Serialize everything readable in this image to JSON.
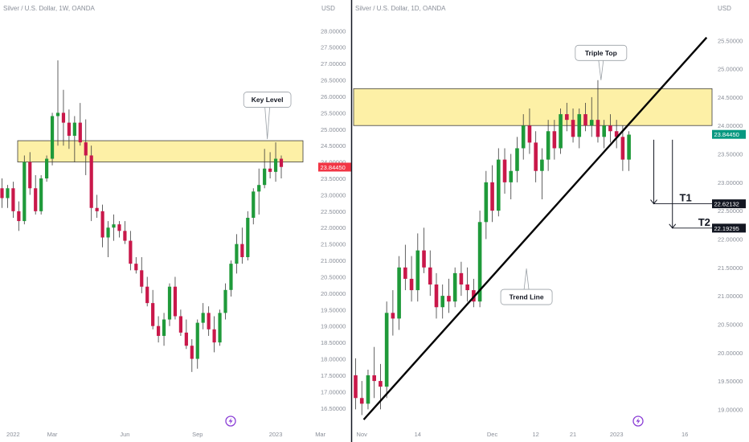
{
  "colors": {
    "up": "#1f9a3a",
    "down": "#c9184a",
    "zone": "#fdf0a6",
    "zone_line": "#3c3c3c",
    "trend": "#000000"
  },
  "chart_data": [
    {
      "type": "candlestick",
      "title": "Silver / U.S. Dollar, 1W, OANDA",
      "currency_label": "USD",
      "y_ticks": [
        "28.00000",
        "27.50000",
        "27.00000",
        "26.50000",
        "26.00000",
        "25.50000",
        "25.00000",
        "24.50000",
        "24.00000",
        "23.50000",
        "23.00000",
        "22.50000",
        "22.00000",
        "21.50000",
        "21.00000",
        "20.50000",
        "20.00000",
        "19.50000",
        "19.00000",
        "18.50000",
        "18.00000",
        "17.50000",
        "17.00000",
        "16.50000"
      ],
      "ylim": [
        16.2,
        28.4
      ],
      "x_ticks": [
        {
          "label": "2022",
          "index": 2
        },
        {
          "label": "Mar",
          "index": 9
        },
        {
          "label": "Jun",
          "index": 22
        },
        {
          "label": "Sep",
          "index": 35
        },
        {
          "label": "2023",
          "index": 49
        },
        {
          "label": "Mar",
          "index": 57
        }
      ],
      "zone": {
        "low": 24.0,
        "high": 24.65
      },
      "last_price": "23.84450",
      "last_price_value": 23.8445,
      "last_price_color": "#f23645",
      "annotation": {
        "text": "Key Level",
        "anchor_index": 47.5,
        "anchor_value": 24.7,
        "label_value": 25.9
      },
      "ohlc": [
        [
          23.2,
          23.5,
          22.6,
          22.9
        ],
        [
          22.9,
          23.3,
          22.6,
          23.2
        ],
        [
          23.2,
          23.4,
          22.3,
          22.5
        ],
        [
          22.5,
          22.8,
          21.9,
          22.2
        ],
        [
          22.2,
          24.2,
          22.1,
          24.0
        ],
        [
          24.0,
          24.3,
          23.0,
          23.2
        ],
        [
          23.2,
          23.6,
          22.4,
          22.5
        ],
        [
          22.5,
          23.6,
          22.4,
          23.5
        ],
        [
          23.5,
          24.2,
          23.4,
          24.1
        ],
        [
          24.1,
          25.5,
          23.9,
          25.4
        ],
        [
          25.4,
          27.1,
          24.5,
          25.5
        ],
        [
          25.5,
          26.2,
          24.5,
          25.2
        ],
        [
          25.2,
          25.6,
          24.4,
          24.8
        ],
        [
          24.8,
          25.4,
          24.0,
          25.2
        ],
        [
          25.2,
          25.8,
          24.5,
          24.6
        ],
        [
          24.6,
          25.3,
          23.6,
          24.2
        ],
        [
          24.2,
          24.5,
          22.2,
          22.6
        ],
        [
          22.6,
          23.0,
          22.3,
          22.5
        ],
        [
          22.5,
          22.7,
          21.4,
          21.7
        ],
        [
          21.7,
          22.2,
          21.1,
          22.0
        ],
        [
          22.0,
          22.4,
          21.6,
          22.1
        ],
        [
          22.1,
          22.2,
          21.7,
          21.9
        ],
        [
          21.9,
          22.2,
          21.5,
          21.6
        ],
        [
          21.6,
          21.9,
          20.7,
          20.9
        ],
        [
          20.9,
          21.1,
          20.6,
          20.7
        ],
        [
          20.7,
          21.1,
          20.0,
          20.2
        ],
        [
          20.2,
          20.5,
          19.6,
          19.7
        ],
        [
          19.7,
          20.1,
          18.9,
          19.0
        ],
        [
          19.0,
          19.3,
          18.5,
          18.7
        ],
        [
          18.7,
          19.4,
          18.4,
          19.2
        ],
        [
          19.2,
          20.3,
          19.0,
          20.2
        ],
        [
          20.2,
          20.5,
          19.2,
          19.3
        ],
        [
          19.3,
          19.5,
          18.7,
          18.8
        ],
        [
          18.8,
          19.2,
          18.3,
          18.4
        ],
        [
          18.4,
          18.6,
          17.6,
          18.0
        ],
        [
          18.0,
          19.2,
          17.7,
          19.1
        ],
        [
          19.1,
          19.7,
          18.9,
          19.4
        ],
        [
          19.4,
          19.6,
          18.7,
          18.9
        ],
        [
          18.9,
          19.3,
          18.2,
          18.5
        ],
        [
          18.5,
          19.5,
          18.4,
          19.4
        ],
        [
          19.4,
          20.3,
          19.2,
          20.1
        ],
        [
          20.1,
          21.0,
          19.9,
          20.9
        ],
        [
          20.9,
          21.8,
          20.6,
          21.5
        ],
        [
          21.5,
          22.0,
          20.9,
          21.1
        ],
        [
          21.1,
          22.5,
          21.0,
          22.3
        ],
        [
          22.3,
          23.2,
          22.1,
          23.1
        ],
        [
          23.1,
          23.8,
          22.4,
          23.3
        ],
        [
          23.3,
          24.4,
          23.2,
          23.8
        ],
        [
          23.8,
          24.3,
          23.5,
          23.7
        ],
        [
          23.7,
          24.6,
          23.4,
          24.1
        ],
        [
          24.1,
          24.2,
          23.5,
          23.85
        ]
      ]
    },
    {
      "type": "candlestick",
      "title": "Silver / U.S. Dollar, 1D, OANDA",
      "currency_label": "USD",
      "y_ticks": [
        "25.50000",
        "25.00000",
        "24.50000",
        "24.00000",
        "23.50000",
        "23.00000",
        "22.50000",
        "22.00000",
        "21.50000",
        "21.00000",
        "20.50000",
        "20.00000",
        "19.50000",
        "19.00000"
      ],
      "ylim": [
        18.85,
        25.9
      ],
      "x_ticks": [
        {
          "label": "Nov",
          "index": 1
        },
        {
          "label": "14",
          "index": 10
        },
        {
          "label": "Dec",
          "index": 22
        },
        {
          "label": "12",
          "index": 29
        },
        {
          "label": "21",
          "index": 35
        },
        {
          "label": "2023",
          "index": 42
        },
        {
          "label": "16",
          "index": 53
        }
      ],
      "zone": {
        "low": 24.0,
        "high": 24.65
      },
      "last_price": "23.84450",
      "last_price_value": 23.8445,
      "last_price_color": "#089981",
      "targets": [
        {
          "name": "T1",
          "label": "22.62132",
          "value": 22.62132,
          "arrow_index": 48,
          "arrow_from": 23.75
        },
        {
          "name": "T2",
          "label": "22.19295",
          "value": 22.19295,
          "arrow_index": 51,
          "arrow_from": 23.75
        }
      ],
      "trend_line": {
        "from_index": 1.3,
        "from_value": 18.82,
        "to_index": 56.5,
        "to_value": 25.55
      },
      "annotations": [
        {
          "text": "Triple Top",
          "anchor_index": 39.5,
          "anchor_value": 24.8,
          "label_value": 25.28
        },
        {
          "text": "Trend Line",
          "anchor_index": 27.5,
          "anchor_value": 21.48,
          "label_value": 20.98
        }
      ],
      "ohlc": [
        [
          19.6,
          19.9,
          19.0,
          19.2
        ],
        [
          19.2,
          19.5,
          18.9,
          19.1
        ],
        [
          19.1,
          19.7,
          19.0,
          19.6
        ],
        [
          19.6,
          20.1,
          19.2,
          19.5
        ],
        [
          19.5,
          19.8,
          19.0,
          19.4
        ],
        [
          19.4,
          20.9,
          19.2,
          20.7
        ],
        [
          20.7,
          21.1,
          20.3,
          20.6
        ],
        [
          20.6,
          21.7,
          20.4,
          21.5
        ],
        [
          21.5,
          21.9,
          21.1,
          21.3
        ],
        [
          21.3,
          21.7,
          20.9,
          21.1
        ],
        [
          21.1,
          22.1,
          20.9,
          21.8
        ],
        [
          21.8,
          22.2,
          21.4,
          21.5
        ],
        [
          21.5,
          21.8,
          21.0,
          21.2
        ],
        [
          21.2,
          21.4,
          20.6,
          20.8
        ],
        [
          20.8,
          21.2,
          20.6,
          21.0
        ],
        [
          21.0,
          21.3,
          20.7,
          20.9
        ],
        [
          20.9,
          21.5,
          20.8,
          21.4
        ],
        [
          21.4,
          21.6,
          21.0,
          21.2
        ],
        [
          21.2,
          21.5,
          20.9,
          21.1
        ],
        [
          21.1,
          21.3,
          20.8,
          20.9
        ],
        [
          20.9,
          22.5,
          20.8,
          22.3
        ],
        [
          22.3,
          23.2,
          22.0,
          23.0
        ],
        [
          23.0,
          23.3,
          22.3,
          22.5
        ],
        [
          22.5,
          23.6,
          22.4,
          23.4
        ],
        [
          23.4,
          23.6,
          22.8,
          23.0
        ],
        [
          23.0,
          23.5,
          22.7,
          23.2
        ],
        [
          23.2,
          23.8,
          23.0,
          23.6
        ],
        [
          23.6,
          24.2,
          23.4,
          24.0
        ],
        [
          24.0,
          24.3,
          23.5,
          23.7
        ],
        [
          23.7,
          23.9,
          23.0,
          23.2
        ],
        [
          23.2,
          23.6,
          22.7,
          23.4
        ],
        [
          23.4,
          24.1,
          23.2,
          23.9
        ],
        [
          23.9,
          24.1,
          23.4,
          23.6
        ],
        [
          23.6,
          24.3,
          23.5,
          24.2
        ],
        [
          24.2,
          24.4,
          23.9,
          24.1
        ],
        [
          24.1,
          24.3,
          23.7,
          23.8
        ],
        [
          23.8,
          24.3,
          23.6,
          24.2
        ],
        [
          24.2,
          24.4,
          23.9,
          24.0
        ],
        [
          24.0,
          24.5,
          23.8,
          24.1
        ],
        [
          24.1,
          24.8,
          23.7,
          23.8
        ],
        [
          23.8,
          24.1,
          23.6,
          24.0
        ],
        [
          24.0,
          24.2,
          23.7,
          23.9
        ],
        [
          23.9,
          24.1,
          23.6,
          23.8
        ],
        [
          23.8,
          24.0,
          23.2,
          23.4
        ],
        [
          23.4,
          23.9,
          23.2,
          23.84
        ]
      ]
    }
  ]
}
